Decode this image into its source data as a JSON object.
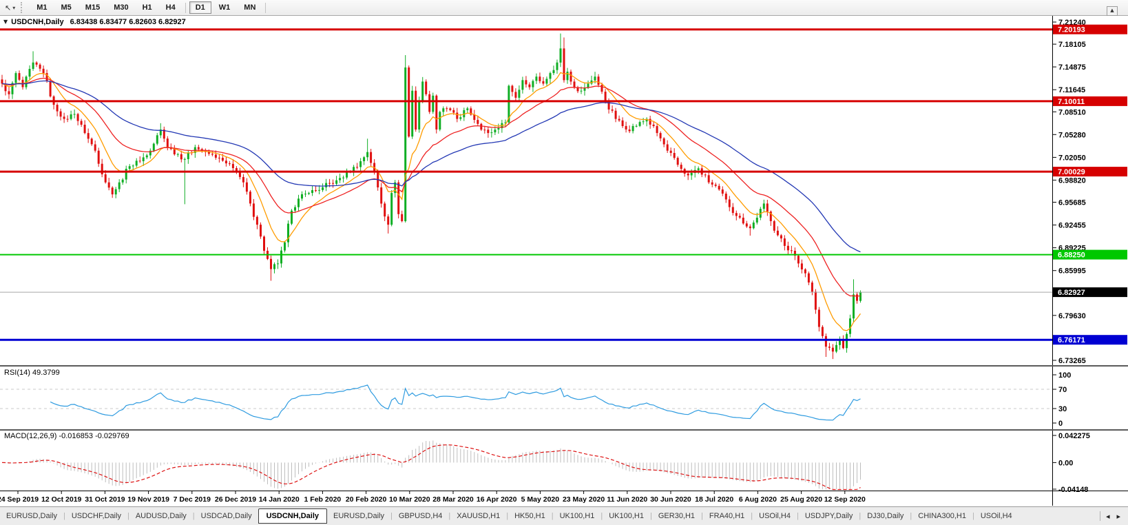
{
  "toolbar": {
    "timeframes": [
      "M1",
      "M5",
      "M15",
      "M30",
      "H1",
      "H4",
      "D1",
      "W1",
      "MN"
    ],
    "active_timeframe": "D1"
  },
  "chart_header": {
    "symbol_label": "USDCNH,Daily",
    "ohlc_text": "6.83438 6.83477 6.82603 6.82927"
  },
  "chart_data": {
    "type": "candlestick",
    "symbol": "USDCNH",
    "timeframe": "Daily",
    "ohlc": {
      "open": "6.83438",
      "high": "6.83477",
      "low": "6.82603",
      "close": "6.82927"
    },
    "num_candles": 250,
    "x_tick_labels": [
      "24 Sep 2019",
      "12 Oct 2019",
      "31 Oct 2019",
      "19 Nov 2019",
      "7 Dec 2019",
      "26 Dec 2019",
      "14 Jan 2020",
      "1 Feb 2020",
      "20 Feb 2020",
      "10 Mar 2020",
      "28 Mar 2020",
      "16 Apr 2020",
      "5 May 2020",
      "23 May 2020",
      "11 Jun 2020",
      "30 Jun 2020",
      "18 Jul 2020",
      "6 Aug 2020",
      "25 Aug 2020",
      "12 Sep 2020"
    ],
    "y_tick_labels": [
      "7.21240",
      "7.18105",
      "7.14875",
      "7.11645",
      "7.08510",
      "7.05280",
      "7.02050",
      "6.98820",
      "6.95685",
      "6.92455",
      "6.89225",
      "6.85995",
      "6.79630",
      "6.73265"
    ],
    "price_keypoints": [
      [
        0,
        7.125
      ],
      [
        2,
        7.11
      ],
      [
        4,
        7.14
      ],
      [
        6,
        7.12
      ],
      [
        9,
        7.155
      ],
      [
        12,
        7.14
      ],
      [
        15,
        7.095
      ],
      [
        18,
        7.075
      ],
      [
        21,
        7.082
      ],
      [
        24,
        7.055
      ],
      [
        27,
        7.03
      ],
      [
        30,
        6.985
      ],
      [
        32,
        6.968
      ],
      [
        34,
        6.985
      ],
      [
        37,
        7.008
      ],
      [
        40,
        7.015
      ],
      [
        43,
        7.03
      ],
      [
        46,
        7.06
      ],
      [
        48,
        7.035
      ],
      [
        51,
        7.025
      ],
      [
        53,
        7.018
      ],
      [
        56,
        7.035
      ],
      [
        59,
        7.028
      ],
      [
        62,
        7.02
      ],
      [
        65,
        7.012
      ],
      [
        68,
        7.0
      ],
      [
        70,
        6.985
      ],
      [
        72,
        6.955
      ],
      [
        74,
        6.925
      ],
      [
        76,
        6.888
      ],
      [
        78,
        6.862
      ],
      [
        80,
        6.87
      ],
      [
        82,
        6.9
      ],
      [
        84,
        6.945
      ],
      [
        86,
        6.962
      ],
      [
        89,
        6.97
      ],
      [
        93,
        6.978
      ],
      [
        97,
        6.988
      ],
      [
        101,
        7.0
      ],
      [
        104,
        7.015
      ],
      [
        106,
        7.028
      ],
      [
        108,
        7.0
      ],
      [
        110,
        6.955
      ],
      [
        112,
        6.925
      ],
      [
        113,
        6.97
      ],
      [
        114,
        6.985
      ],
      [
        115,
        6.94
      ],
      [
        116,
        6.93
      ],
      [
        117,
        7.148
      ],
      [
        118,
        7.05
      ],
      [
        119,
        7.115
      ],
      [
        120,
        7.06
      ],
      [
        121,
        7.1
      ],
      [
        122,
        7.128
      ],
      [
        123,
        7.11
      ],
      [
        124,
        7.085
      ],
      [
        125,
        7.108
      ],
      [
        126,
        7.06
      ],
      [
        127,
        7.085
      ],
      [
        129,
        7.09
      ],
      [
        132,
        7.075
      ],
      [
        135,
        7.09
      ],
      [
        138,
        7.068
      ],
      [
        141,
        7.055
      ],
      [
        144,
        7.062
      ],
      [
        146,
        7.07
      ],
      [
        147,
        7.122
      ],
      [
        149,
        7.105
      ],
      [
        151,
        7.13
      ],
      [
        153,
        7.12
      ],
      [
        155,
        7.135
      ],
      [
        157,
        7.125
      ],
      [
        159,
        7.14
      ],
      [
        161,
        7.155
      ],
      [
        162,
        7.175
      ],
      [
        163,
        7.13
      ],
      [
        164,
        7.142
      ],
      [
        166,
        7.12
      ],
      [
        168,
        7.115
      ],
      [
        170,
        7.125
      ],
      [
        172,
        7.135
      ],
      [
        175,
        7.1
      ],
      [
        178,
        7.075
      ],
      [
        181,
        7.06
      ],
      [
        184,
        7.065
      ],
      [
        187,
        7.075
      ],
      [
        190,
        7.055
      ],
      [
        193,
        7.03
      ],
      [
        196,
        7.01
      ],
      [
        199,
        6.995
      ],
      [
        202,
        7.005
      ],
      [
        205,
        6.985
      ],
      [
        208,
        6.975
      ],
      [
        211,
        6.95
      ],
      [
        214,
        6.935
      ],
      [
        217,
        6.92
      ],
      [
        219,
        6.935
      ],
      [
        221,
        6.955
      ],
      [
        223,
        6.93
      ],
      [
        225,
        6.91
      ],
      [
        227,
        6.895
      ],
      [
        229,
        6.888
      ],
      [
        231,
        6.87
      ],
      [
        233,
        6.856
      ],
      [
        235,
        6.83
      ],
      [
        237,
        6.78
      ],
      [
        239,
        6.752
      ],
      [
        241,
        6.745
      ],
      [
        243,
        6.762
      ],
      [
        244,
        6.75
      ],
      [
        245,
        6.77
      ],
      [
        246,
        6.792
      ],
      [
        247,
        6.826
      ],
      [
        248,
        6.817
      ],
      [
        249,
        6.8293
      ]
    ],
    "wick_overrides": [
      {
        "i": 9,
        "high": 7.171
      },
      {
        "i": 46,
        "high": 7.069
      },
      {
        "i": 53,
        "low": 6.954
      },
      {
        "i": 78,
        "low": 6.8455
      },
      {
        "i": 106,
        "high": 7.047
      },
      {
        "i": 112,
        "low": 6.9125
      },
      {
        "i": 117,
        "high": 7.1655
      },
      {
        "i": 162,
        "high": 7.1962
      },
      {
        "i": 163,
        "high": 7.1905
      },
      {
        "i": 217,
        "low": 6.9095
      },
      {
        "i": 239,
        "low": 6.7375
      },
      {
        "i": 241,
        "low": 6.7345
      },
      {
        "i": 247,
        "high": 6.8475
      }
    ],
    "horizontal_lines": [
      {
        "price": 7.20193,
        "label": "7.20193",
        "color": "#d60000",
        "thickness": 3
      },
      {
        "price": 7.10011,
        "label": "7.10011",
        "color": "#d60000",
        "thickness": 3
      },
      {
        "price": 7.00029,
        "label": "7.00029",
        "color": "#d60000",
        "thickness": 3
      },
      {
        "price": 6.8825,
        "label": "6.88250",
        "color": "#00c800",
        "thickness": 2
      },
      {
        "price": 6.76171,
        "label": "6.76171",
        "color": "#0000d2",
        "thickness": 3
      }
    ],
    "current_price": {
      "value": 6.82927,
      "label": "6.82927",
      "line_color": "#a8a8a8",
      "label_bg": "#000000"
    },
    "moving_averages": [
      {
        "name": "fast-ma",
        "period": 10,
        "color": "#ff9c00"
      },
      {
        "name": "medium-ma",
        "period": 25,
        "color": "#ee2222"
      },
      {
        "name": "slow-ma",
        "period": 55,
        "color": "#2338b4"
      }
    ],
    "candle_colors": {
      "up": "#0fae24",
      "down": "#e00f0f"
    },
    "rsi": {
      "label": "RSI(14) 49.3799",
      "period": 14,
      "levels": [
        70,
        30
      ],
      "axis_labels": [
        "100",
        "70",
        "30",
        "0"
      ],
      "line_color": "#2e9be0"
    },
    "macd": {
      "label": "MACD(12,26,9) -0.016853 -0.029769",
      "axis_labels": [
        "0.042275",
        "0.00",
        "-0.04148"
      ],
      "histogram_color": "#bdbdbd",
      "signal_color": "#dd1111"
    }
  },
  "tabs": {
    "items": [
      "EURUSD,Daily",
      "USDCHF,Daily",
      "AUDUSD,Daily",
      "USDCAD,Daily",
      "USDCNH,Daily",
      "EURUSD,Daily",
      "GBPUSD,H4",
      "XAUUSD,H1",
      "HK50,H1",
      "UK100,H1",
      "UK100,H1",
      "GER30,H1",
      "FRA40,H1",
      "USOil,H4",
      "USDJPY,Daily",
      "DJ30,Daily",
      "CHINA300,H1",
      "USOil,H4"
    ],
    "active_index": 4,
    "nav_left": "◂",
    "nav_right": "▸"
  }
}
